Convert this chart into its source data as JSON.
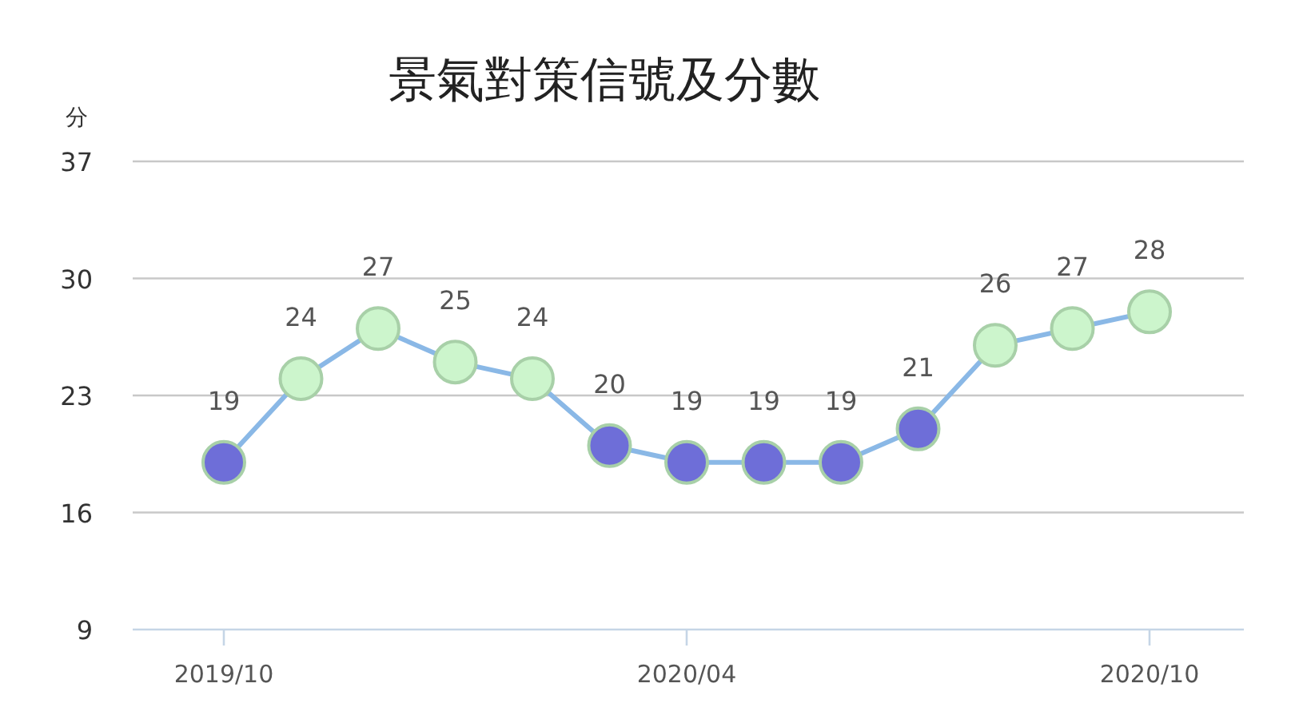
{
  "chart_data": {
    "type": "line",
    "title": "景氣對策信號及分數",
    "ylabel": "分",
    "categories": [
      "2019/10",
      null,
      null,
      null,
      null,
      null,
      "2020/04",
      null,
      null,
      null,
      null,
      null,
      "2020/10"
    ],
    "series": [
      {
        "color": "#8ab8e6",
        "values": [
          19,
          24,
          27,
          25,
          24,
          20,
          19,
          19,
          19,
          21,
          26,
          27,
          28
        ],
        "colors": [
          "#6e6ed8",
          "#ccf5cc",
          "#ccf5cc",
          "#ccf5cc",
          "#ccf5cc",
          "#6e6ed8",
          "#6e6ed8",
          "#6e6ed8",
          "#6e6ed8",
          "#6e6ed8",
          "#ccf5cc",
          "#ccf5cc",
          "#ccf5cc"
        ]
      }
    ],
    "ylim": [
      9,
      37
    ],
    "yticks": [
      9,
      16,
      23,
      30,
      37
    ],
    "grid": "y",
    "marker": "circle",
    "data_labels": true
  }
}
